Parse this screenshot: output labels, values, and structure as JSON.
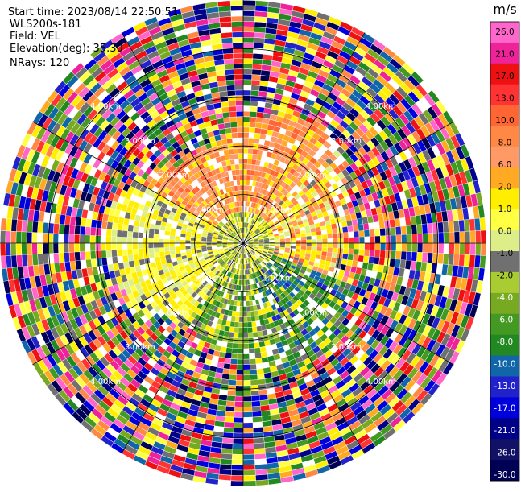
{
  "header": {
    "start_time": "Start time: 2023/08/14 22:50:51",
    "instrument": "WLS200s-181",
    "field": "Field: VEL",
    "elevation": "Elevation(deg): 35.30",
    "nrays": "NRays: 120"
  },
  "colorbar": {
    "unit": "m/s",
    "ticks": [
      "26.0",
      "21.0",
      "17.0",
      "13.0",
      "10.0",
      "8.0",
      "6.0",
      "2.0",
      "1.0",
      "0.0",
      "-1.0",
      "-2.0",
      "-4.0",
      "-6.0",
      "-8.0",
      "-10.0",
      "-13.0",
      "-17.0",
      "-21.0",
      "-26.0",
      "-30.0"
    ],
    "colors": [
      "#ff66cc",
      "#ee2299",
      "#ee1111",
      "#ff3333",
      "#ff6633",
      "#ff8844",
      "#ff9966",
      "#ffaa22",
      "#ffee00",
      "#ffff44",
      "#ddee88",
      "#707070",
      "#aacc33",
      "#77aa22",
      "#449922",
      "#228822",
      "#1166aa",
      "#2222cc",
      "#0000dd",
      "#000088",
      "#111166",
      "#000055"
    ]
  },
  "chart_data": {
    "type": "ppi",
    "field": "VEL",
    "unit": "m/s",
    "nrays": 120,
    "range_rings_km": [
      1.0,
      2.0,
      3.0,
      4.0
    ],
    "ring_labels": [
      "1.00km",
      "2.00km",
      "3.00km",
      "4.00km"
    ],
    "max_range_km": 5.0,
    "spoke_angles_deg": [
      0,
      30,
      60,
      90,
      120,
      150,
      180,
      210,
      240,
      270,
      300,
      330
    ]
  }
}
